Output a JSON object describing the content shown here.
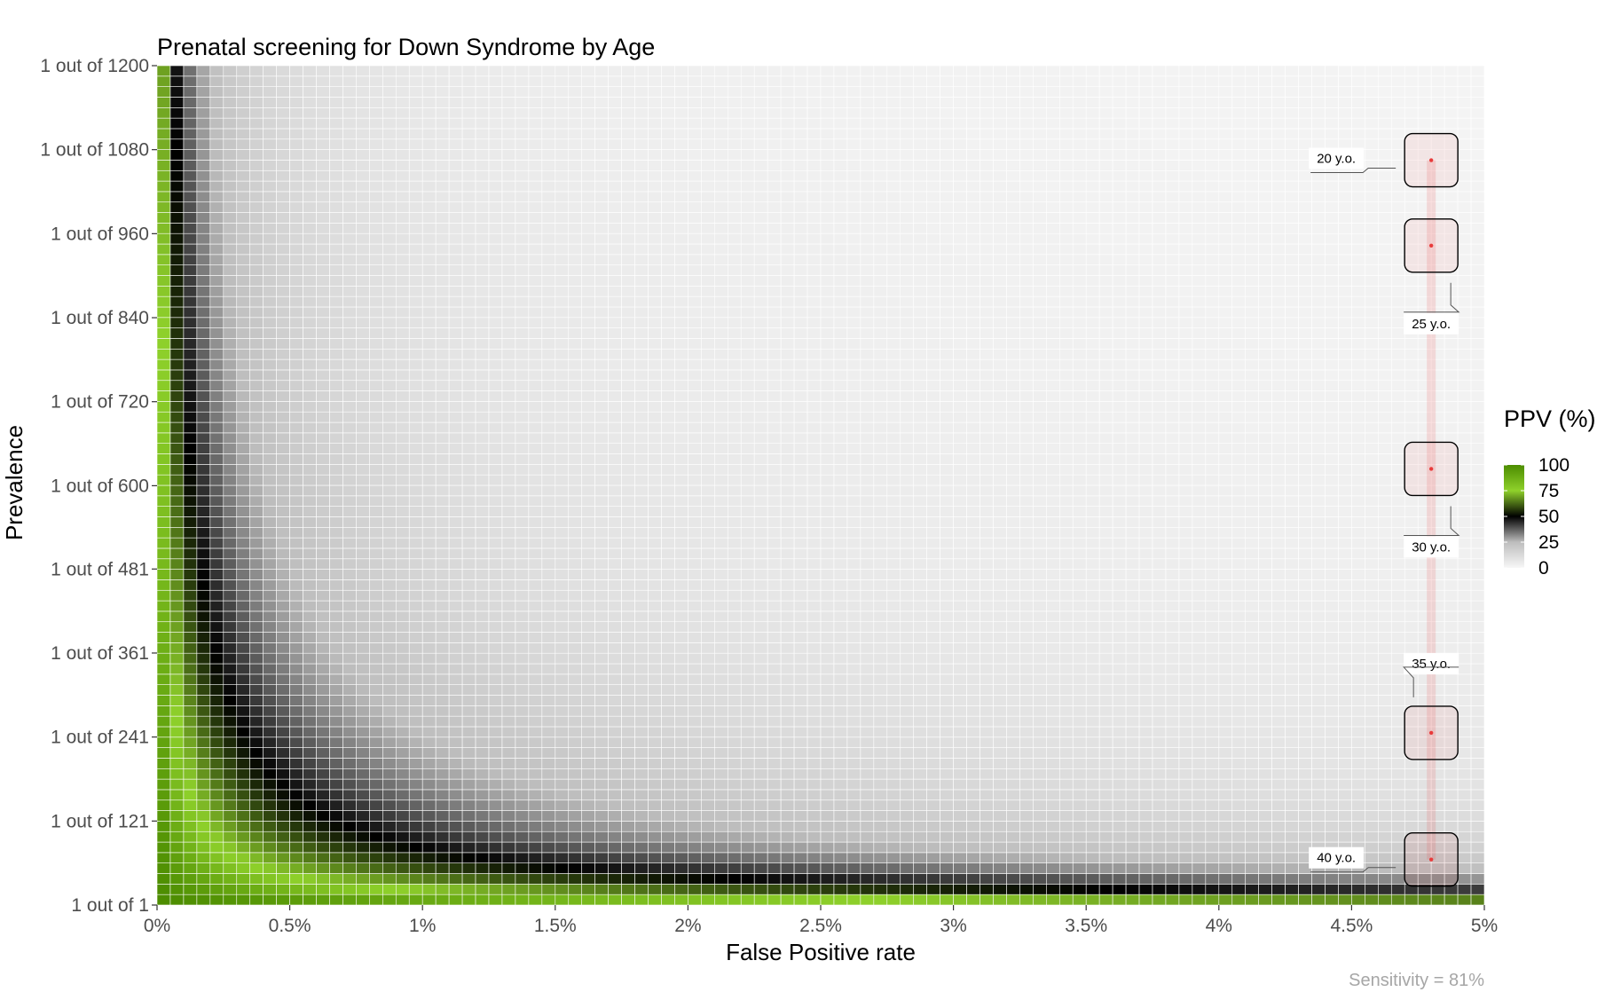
{
  "chart_data": {
    "type": "heatmap",
    "title": "Prenatal screening for Down Syndrome by Age",
    "xlabel": "False Positive rate",
    "ylabel": "Prevalence",
    "caption": "Sensitivity = 81%",
    "sensitivity": 0.81,
    "xlim": [
      0,
      5
    ],
    "x_unit": "%",
    "x_ticks": [
      "0%",
      "0.5%",
      "1%",
      "1.5%",
      "2%",
      "2.5%",
      "3%",
      "3.5%",
      "4%",
      "4.5%",
      "5%"
    ],
    "x_tick_values": [
      0,
      0.5,
      1,
      1.5,
      2,
      2.5,
      3,
      3.5,
      4,
      4.5,
      5
    ],
    "ylim": [
      1,
      1200
    ],
    "y_ticks": [
      "1 out of 1",
      "1 out of 121",
      "1 out of 241",
      "1 out of 361",
      "1 out of 481",
      "1 out of 600",
      "1 out of 720",
      "1 out of 840",
      "1 out of 960",
      "1 out of 1080",
      "1 out of 1200"
    ],
    "y_tick_values": [
      1,
      121,
      241,
      361,
      481,
      600,
      720,
      840,
      960,
      1080,
      1200
    ],
    "grid": false,
    "fill_variable": "PPV (%)",
    "legend": {
      "title": "PPV (%)",
      "position": "right",
      "labels": [
        "100",
        "75",
        "50",
        "25",
        "0"
      ],
      "values": [
        100,
        75,
        50,
        25,
        0
      ],
      "colors": [
        "#f7f7f7",
        "#e1e1e1",
        "#000000",
        "#8fd12b",
        "#4c8c00"
      ]
    },
    "annotations": [
      {
        "label": "20 y.o.",
        "x": 4.8,
        "prevalence": 1065,
        "label_side": "left"
      },
      {
        "label": "25 y.o.",
        "x": 4.8,
        "prevalence": 943,
        "label_side": "below"
      },
      {
        "label": "30 y.o.",
        "x": 4.8,
        "prevalence": 624,
        "label_side": "below"
      },
      {
        "label": "35 y.o.",
        "x": 4.8,
        "prevalence": 247,
        "label_side": "above"
      },
      {
        "label": "40 y.o.",
        "x": 4.8,
        "prevalence": 66,
        "label_side": "left"
      }
    ],
    "highlight_color": "#e83b3b"
  }
}
